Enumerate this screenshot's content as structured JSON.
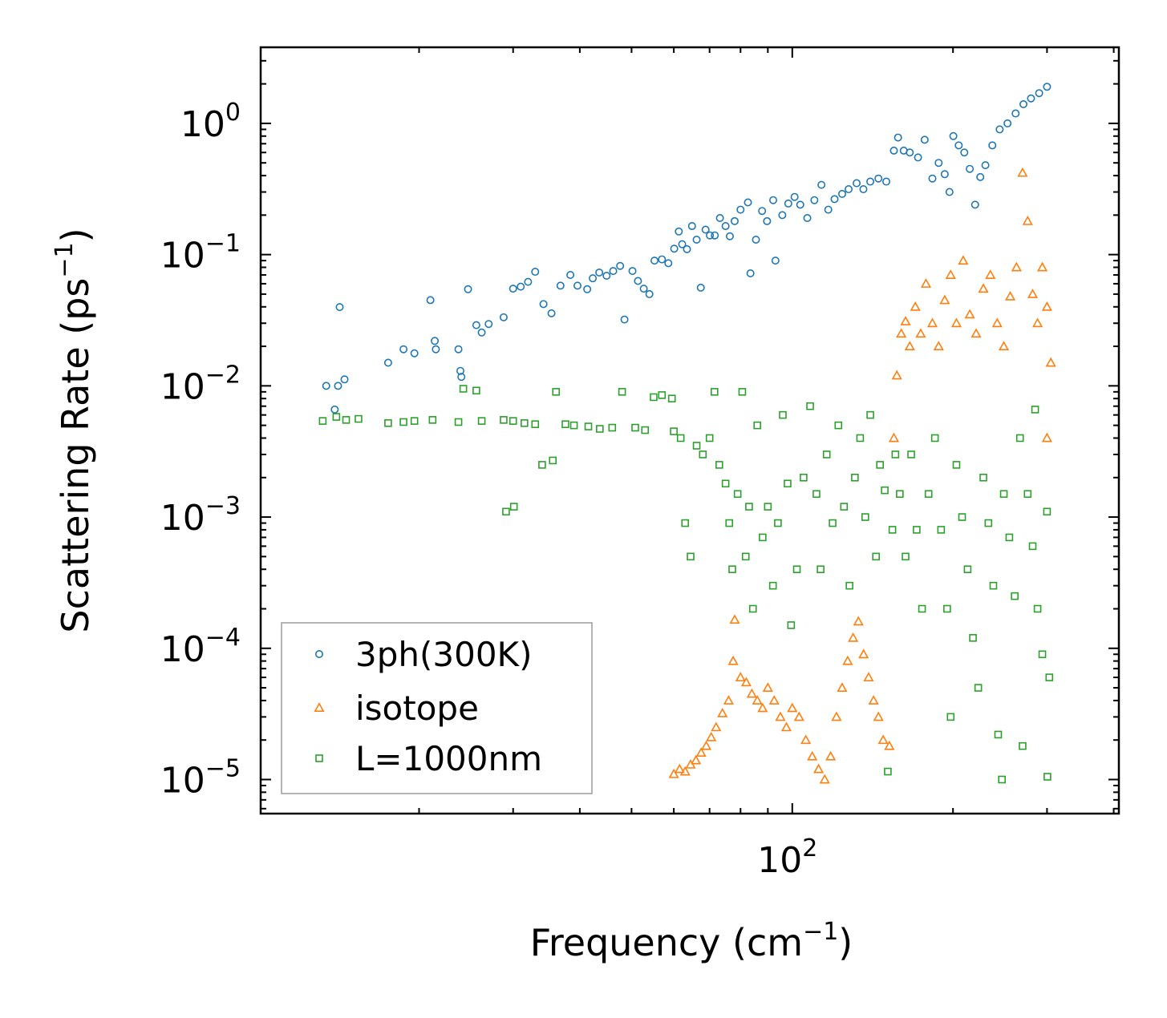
{
  "chart_data": {
    "type": "scatter",
    "xscale": "log",
    "yscale": "log",
    "xlabel": "Frequency (cm",
    "xlabel_sup": "−1",
    "xlabel_end": ")",
    "ylabel": "Scattering Rate (ps",
    "ylabel_sup": "−1",
    "ylabel_end": ")",
    "xlim": [
      10.1,
      409
    ],
    "ylim": [
      5.5e-06,
      3.8
    ],
    "x_major_ticks": [
      {
        "value": 100,
        "base": "10",
        "exp": "2"
      }
    ],
    "y_major_ticks": [
      {
        "value": 1e-05,
        "base": "10",
        "exp": "−5"
      },
      {
        "value": 0.0001,
        "base": "10",
        "exp": "−4"
      },
      {
        "value": 0.001,
        "base": "10",
        "exp": "−3"
      },
      {
        "value": 0.01,
        "base": "10",
        "exp": "−2"
      },
      {
        "value": 0.1,
        "base": "10",
        "exp": "−1"
      },
      {
        "value": 1,
        "base": "10",
        "exp": "0"
      }
    ],
    "legend_position": "lower-left",
    "series": [
      {
        "name": "3ph(300K)",
        "marker": "circle",
        "color": "#1f77b4",
        "points": [
          [
            13.4,
            0.01
          ],
          [
            14.2,
            0.0398
          ],
          [
            14.1,
            0.01
          ],
          [
            14.5,
            0.0112
          ],
          [
            13.9,
            0.0066
          ],
          [
            17.5,
            0.015
          ],
          [
            18.7,
            0.019
          ],
          [
            19.6,
            0.0177
          ],
          [
            21.0,
            0.045
          ],
          [
            21.4,
            0.022
          ],
          [
            21.5,
            0.019
          ],
          [
            23.7,
            0.019
          ],
          [
            23.9,
            0.013
          ],
          [
            24.0,
            0.0117
          ],
          [
            24.7,
            0.0545
          ],
          [
            25.6,
            0.029
          ],
          [
            26.2,
            0.0255
          ],
          [
            27.0,
            0.0296
          ],
          [
            28.8,
            0.0333
          ],
          [
            30.0,
            0.055
          ],
          [
            31.0,
            0.057
          ],
          [
            32.0,
            0.062
          ],
          [
            33.0,
            0.074
          ],
          [
            34.2,
            0.042
          ],
          [
            35.4,
            0.0357
          ],
          [
            36.8,
            0.058
          ],
          [
            38.4,
            0.07
          ],
          [
            39.6,
            0.058
          ],
          [
            41.3,
            0.0545
          ],
          [
            42.3,
            0.066
          ],
          [
            43.5,
            0.073
          ],
          [
            44.9,
            0.069
          ],
          [
            46.2,
            0.075
          ],
          [
            47.6,
            0.082
          ],
          [
            48.5,
            0.032
          ],
          [
            50.2,
            0.075
          ],
          [
            51.4,
            0.063
          ],
          [
            52.7,
            0.055
          ],
          [
            54.0,
            0.05
          ],
          [
            55.2,
            0.09
          ],
          [
            57.0,
            0.092
          ],
          [
            58.6,
            0.086
          ],
          [
            60.1,
            0.111
          ],
          [
            61.3,
            0.15
          ],
          [
            62.2,
            0.12
          ],
          [
            63.5,
            0.11
          ],
          [
            64.9,
            0.165
          ],
          [
            66.2,
            0.13
          ],
          [
            67.4,
            0.056
          ],
          [
            68.8,
            0.155
          ],
          [
            70.1,
            0.14
          ],
          [
            71.6,
            0.14
          ],
          [
            73.2,
            0.19
          ],
          [
            75.0,
            0.165
          ],
          [
            76.4,
            0.138
          ],
          [
            78.0,
            0.18
          ],
          [
            80.0,
            0.22
          ],
          [
            82.6,
            0.25
          ],
          [
            83.5,
            0.072
          ],
          [
            85.5,
            0.13
          ],
          [
            87.8,
            0.215
          ],
          [
            89.7,
            0.18
          ],
          [
            92.1,
            0.26
          ],
          [
            93.0,
            0.09
          ],
          [
            95.8,
            0.2
          ],
          [
            98.3,
            0.245
          ],
          [
            101.0,
            0.275
          ],
          [
            103.5,
            0.24
          ],
          [
            106.7,
            0.19
          ],
          [
            110.0,
            0.26
          ],
          [
            113.4,
            0.34
          ],
          [
            116.8,
            0.22
          ],
          [
            120.0,
            0.265
          ],
          [
            124.0,
            0.29
          ],
          [
            127.5,
            0.315
          ],
          [
            132.0,
            0.35
          ],
          [
            135.9,
            0.315
          ],
          [
            140.0,
            0.36
          ],
          [
            145.0,
            0.38
          ],
          [
            150.0,
            0.36
          ],
          [
            155.0,
            0.62
          ],
          [
            157.8,
            0.78
          ],
          [
            161.7,
            0.62
          ],
          [
            166.0,
            0.6
          ],
          [
            172.0,
            0.55
          ],
          [
            177.0,
            0.75
          ],
          [
            183.0,
            0.38
          ],
          [
            188.0,
            0.5
          ],
          [
            193.0,
            0.41
          ],
          [
            197.0,
            0.3
          ],
          [
            200.3,
            0.8
          ],
          [
            205.0,
            0.68
          ],
          [
            210.0,
            0.6
          ],
          [
            215.0,
            0.45
          ],
          [
            220.0,
            0.24
          ],
          [
            225.0,
            0.39
          ],
          [
            230.0,
            0.48
          ],
          [
            237.0,
            0.68
          ],
          [
            244.6,
            0.9
          ],
          [
            253.0,
            1.0
          ],
          [
            262.0,
            1.19
          ],
          [
            271.0,
            1.4
          ],
          [
            280.0,
            1.55
          ],
          [
            290.0,
            1.7
          ],
          [
            300.0,
            1.9
          ]
        ]
      },
      {
        "name": "isotope",
        "marker": "triangle",
        "color": "#ff7f0e",
        "points": [
          [
            60.0,
            1.1e-05
          ],
          [
            61.5,
            1.2e-05
          ],
          [
            63.0,
            1.15e-05
          ],
          [
            64.5,
            1.3e-05
          ],
          [
            66.0,
            1.4e-05
          ],
          [
            67.5,
            1.6e-05
          ],
          [
            69.0,
            1.8e-05
          ],
          [
            70.5,
            2.1e-05
          ],
          [
            72.0,
            2.5e-05
          ],
          [
            74.0,
            3.2e-05
          ],
          [
            76.0,
            4e-05
          ],
          [
            77.5,
            8e-05
          ],
          [
            78.0,
            0.000165
          ],
          [
            80.0,
            6e-05
          ],
          [
            82.0,
            5.5e-05
          ],
          [
            84.0,
            4.5e-05
          ],
          [
            86.0,
            4e-05
          ],
          [
            88.0,
            3.5e-05
          ],
          [
            90.0,
            5e-05
          ],
          [
            92.5,
            4e-05
          ],
          [
            95.0,
            3e-05
          ],
          [
            97.5,
            2.5e-05
          ],
          [
            100.0,
            3.5e-05
          ],
          [
            103.0,
            3e-05
          ],
          [
            106.0,
            2e-05
          ],
          [
            109.0,
            1.5e-05
          ],
          [
            112.0,
            1.2e-05
          ],
          [
            115.0,
            1e-05
          ],
          [
            118.0,
            1.5e-05
          ],
          [
            121.0,
            3e-05
          ],
          [
            124.0,
            5e-05
          ],
          [
            127.0,
            8e-05
          ],
          [
            130.0,
            0.00012
          ],
          [
            133.0,
            0.00016
          ],
          [
            136.0,
            9e-05
          ],
          [
            139.0,
            6e-05
          ],
          [
            142.0,
            4e-05
          ],
          [
            145.0,
            3e-05
          ],
          [
            148.0,
            2e-05
          ],
          [
            152.0,
            1.8e-05
          ],
          [
            155.0,
            0.004
          ],
          [
            157.0,
            0.012
          ],
          [
            160.0,
            0.025
          ],
          [
            163.0,
            0.031
          ],
          [
            166.0,
            0.02
          ],
          [
            170.0,
            0.04
          ],
          [
            174.0,
            0.025
          ],
          [
            178.0,
            0.06
          ],
          [
            183.0,
            0.03
          ],
          [
            188.0,
            0.02
          ],
          [
            193.0,
            0.045
          ],
          [
            198.0,
            0.07
          ],
          [
            203.0,
            0.03
          ],
          [
            209.0,
            0.09
          ],
          [
            215.0,
            0.035
          ],
          [
            221.0,
            0.025
          ],
          [
            228.0,
            0.055
          ],
          [
            235.0,
            0.07
          ],
          [
            242.0,
            0.03
          ],
          [
            249.0,
            0.02
          ],
          [
            256.0,
            0.048
          ],
          [
            263.0,
            0.08
          ],
          [
            270.0,
            0.42
          ],
          [
            276.0,
            0.18
          ],
          [
            282.0,
            0.05
          ],
          [
            288.0,
            0.03
          ],
          [
            294.0,
            0.08
          ],
          [
            300.0,
            0.04
          ],
          [
            305.0,
            0.015
          ],
          [
            300.0,
            0.004
          ]
        ]
      },
      {
        "name": "L=1000nm",
        "marker": "square",
        "color": "#2ca02c",
        "points": [
          [
            13.2,
            0.0054
          ],
          [
            14.0,
            0.0058
          ],
          [
            14.6,
            0.0055
          ],
          [
            15.4,
            0.0056
          ],
          [
            17.5,
            0.0052
          ],
          [
            18.7,
            0.0053
          ],
          [
            19.6,
            0.0054
          ],
          [
            21.2,
            0.0055
          ],
          [
            23.7,
            0.0053
          ],
          [
            24.2,
            0.0095
          ],
          [
            25.6,
            0.0092
          ],
          [
            26.2,
            0.0054
          ],
          [
            28.8,
            0.0055
          ],
          [
            30.0,
            0.0054
          ],
          [
            31.5,
            0.0052
          ],
          [
            33.0,
            0.0051
          ],
          [
            34.0,
            0.0025
          ],
          [
            35.6,
            0.0027
          ],
          [
            36.1,
            0.009
          ],
          [
            37.6,
            0.0051
          ],
          [
            29.1,
            0.0011
          ],
          [
            30.1,
            0.0012
          ],
          [
            39.0,
            0.005
          ],
          [
            41.5,
            0.0049
          ],
          [
            43.6,
            0.0047
          ],
          [
            46.0,
            0.0048
          ],
          [
            48.0,
            0.009
          ],
          [
            50.8,
            0.0048
          ],
          [
            53.0,
            0.0046
          ],
          [
            55.0,
            0.0082
          ],
          [
            57.0,
            0.0085
          ],
          [
            59.5,
            0.008
          ],
          [
            60.0,
            0.0045
          ],
          [
            61.8,
            0.004
          ],
          [
            63.0,
            0.0009
          ],
          [
            64.5,
            0.0005
          ],
          [
            66.2,
            0.0035
          ],
          [
            68.0,
            0.003
          ],
          [
            70.0,
            0.004
          ],
          [
            71.5,
            0.009
          ],
          [
            73.0,
            0.0025
          ],
          [
            75.0,
            0.0018
          ],
          [
            76.2,
            0.0009
          ],
          [
            77.2,
            0.0004
          ],
          [
            79.0,
            0.0015
          ],
          [
            80.6,
            0.009
          ],
          [
            81.8,
            0.0005
          ],
          [
            83.0,
            0.0012
          ],
          [
            84.4,
            0.0002
          ],
          [
            86.0,
            0.005
          ],
          [
            88.0,
            0.0007
          ],
          [
            90.0,
            0.0012
          ],
          [
            92.0,
            0.0003
          ],
          [
            94.0,
            0.0009
          ],
          [
            96.0,
            0.006
          ],
          [
            98.0,
            0.0018
          ],
          [
            99.5,
            0.00015
          ],
          [
            102.0,
            0.0004
          ],
          [
            105.0,
            0.002
          ],
          [
            108.0,
            0.007
          ],
          [
            111.0,
            0.0015
          ],
          [
            113.0,
            0.0004
          ],
          [
            116.0,
            0.003
          ],
          [
            119.0,
            0.0009
          ],
          [
            122.0,
            0.005
          ],
          [
            125.0,
            0.0012
          ],
          [
            128.0,
            0.0003
          ],
          [
            131.0,
            0.002
          ],
          [
            134.0,
            0.004
          ],
          [
            137.0,
            0.001
          ],
          [
            140.0,
            0.006
          ],
          [
            143.5,
            0.0005
          ],
          [
            146.0,
            0.0025
          ],
          [
            149.0,
            0.0016
          ],
          [
            151.0,
            1.15e-05
          ],
          [
            154.0,
            0.0008
          ],
          [
            156.0,
            0.003
          ],
          [
            159.0,
            0.0015
          ],
          [
            163.0,
            0.0005
          ],
          [
            167.0,
            0.003
          ],
          [
            171.0,
            0.0008
          ],
          [
            175.0,
            0.0002
          ],
          [
            180.0,
            0.0015
          ],
          [
            185.0,
            0.004
          ],
          [
            190.0,
            0.0008
          ],
          [
            195.0,
            0.0002
          ],
          [
            198.0,
            3e-05
          ],
          [
            203.0,
            0.0025
          ],
          [
            208.0,
            0.001
          ],
          [
            213.0,
            0.0004
          ],
          [
            218.0,
            0.00012
          ],
          [
            223.0,
            5e-05
          ],
          [
            228.0,
            0.002
          ],
          [
            233.0,
            0.0009
          ],
          [
            238.0,
            0.0003
          ],
          [
            243.0,
            2.2e-05
          ],
          [
            249.0,
            0.0015
          ],
          [
            255.0,
            0.0007
          ],
          [
            261.0,
            0.00025
          ],
          [
            267.0,
            0.004
          ],
          [
            270.0,
            1.8e-05
          ],
          [
            276.0,
            0.0015
          ],
          [
            282.0,
            0.0006
          ],
          [
            288.0,
            0.0002
          ],
          [
            294.0,
            9e-05
          ],
          [
            300.0,
            0.0011
          ],
          [
            303.0,
            6e-05
          ],
          [
            300.5,
            1.05e-05
          ],
          [
            285.0,
            0.0066
          ],
          [
            247.0,
            1e-05
          ]
        ]
      }
    ]
  }
}
